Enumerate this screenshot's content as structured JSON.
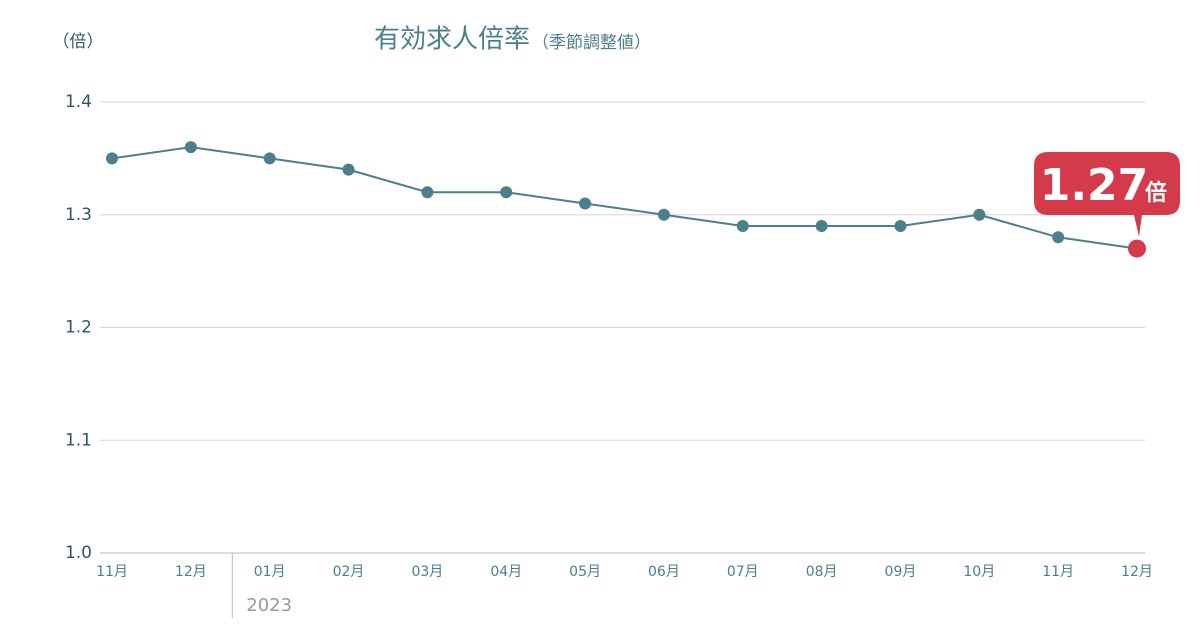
{
  "chart_data": {
    "type": "line",
    "title": "有効求人倍率",
    "subtitle": "（季節調整値）",
    "y_unit_label": "（倍）",
    "categories": [
      "11月",
      "12月",
      "01月",
      "02月",
      "03月",
      "04月",
      "05月",
      "06月",
      "07月",
      "08月",
      "09月",
      "10月",
      "11月",
      "12月"
    ],
    "values": [
      1.35,
      1.36,
      1.35,
      1.34,
      1.32,
      1.32,
      1.31,
      1.3,
      1.29,
      1.29,
      1.29,
      1.3,
      1.28,
      1.27
    ],
    "color": "#4b7f8b",
    "highlight_color": "#d43a49",
    "ylim": [
      1.0,
      1.4
    ],
    "yticks": [
      {
        "value": 1.0,
        "label": "1.0"
      },
      1.1,
      1.2,
      1.3,
      1.4
    ],
    "grid": true,
    "callout_unit": "倍",
    "year_marker": {
      "label": "2023",
      "at": 2
    }
  }
}
